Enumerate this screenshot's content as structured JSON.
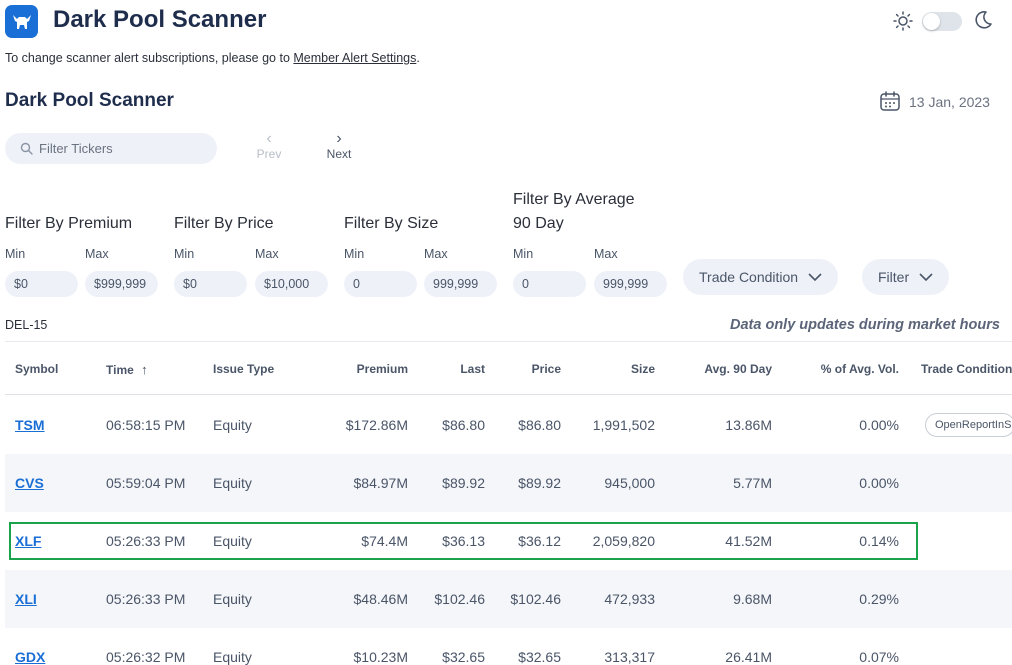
{
  "header": {
    "app_title": "Dark Pool Scanner",
    "brand_color": "#1a6fd6"
  },
  "notice": {
    "text": "To change scanner alert subscriptions, please go to ",
    "link": "Member Alert Settings",
    "suffix": "."
  },
  "section": {
    "title": "Dark Pool Scanner",
    "date": "13 Jan, 2023"
  },
  "search": {
    "placeholder": "Filter Tickers"
  },
  "pager": {
    "prev": "Prev",
    "next": "Next"
  },
  "filters": {
    "premium": {
      "label": "Filter By Premium",
      "min_label": "Min",
      "max_label": "Max",
      "min": "$0",
      "max": "$999,999"
    },
    "price": {
      "label": "Filter By Price",
      "min_label": "Min",
      "max_label": "Max",
      "min": "$0",
      "max": "$10,000"
    },
    "size": {
      "label": "Filter By Size",
      "min_label": "Min",
      "max_label": "Max",
      "min": "0",
      "max": "999,999"
    },
    "avg90": {
      "label_line1": "Filter By Average",
      "label_line2": "90 Day",
      "min_label": "Min",
      "max_label": "Max",
      "min": "0",
      "max": "999,999"
    },
    "trade_condition_btn": "Trade Condition",
    "filter_btn": "Filter"
  },
  "table_meta": {
    "code": "DEL-15",
    "updates_note": "Data only updates during market hours"
  },
  "columns": {
    "symbol": "Symbol",
    "time": "Time",
    "issue_type": "Issue Type",
    "premium": "Premium",
    "last": "Last",
    "price": "Price",
    "size": "Size",
    "avg90": "Avg. 90 Day",
    "pct_avg_vol": "% of Avg. Vol.",
    "trade_condition": "Trade Condition"
  },
  "rows": [
    {
      "symbol": "TSM",
      "time": "06:58:15 PM",
      "issue_type": "Equity",
      "premium": "$172.86M",
      "last": "$86.80",
      "price": "$86.80",
      "size": "1,991,502",
      "avg90": "13.86M",
      "pct": "0.00%",
      "condition": "OpenReportInS"
    },
    {
      "symbol": "CVS",
      "time": "05:59:04 PM",
      "issue_type": "Equity",
      "premium": "$84.97M",
      "last": "$89.92",
      "price": "$89.92",
      "size": "945,000",
      "avg90": "5.77M",
      "pct": "0.00%",
      "condition": ""
    },
    {
      "symbol": "XLF",
      "time": "05:26:33 PM",
      "issue_type": "Equity",
      "premium": "$74.4M",
      "last": "$36.13",
      "price": "$36.12",
      "size": "2,059,820",
      "avg90": "41.52M",
      "pct": "0.14%",
      "condition": ""
    },
    {
      "symbol": "XLI",
      "time": "05:26:33 PM",
      "issue_type": "Equity",
      "premium": "$48.46M",
      "last": "$102.46",
      "price": "$102.46",
      "size": "472,933",
      "avg90": "9.68M",
      "pct": "0.29%",
      "condition": ""
    },
    {
      "symbol": "GDX",
      "time": "05:26:32 PM",
      "issue_type": "Equity",
      "premium": "$10.23M",
      "last": "$32.65",
      "price": "$32.65",
      "size": "313,317",
      "avg90": "26.41M",
      "pct": "0.07%",
      "condition": ""
    }
  ],
  "highlight_color": "#1aa34a"
}
